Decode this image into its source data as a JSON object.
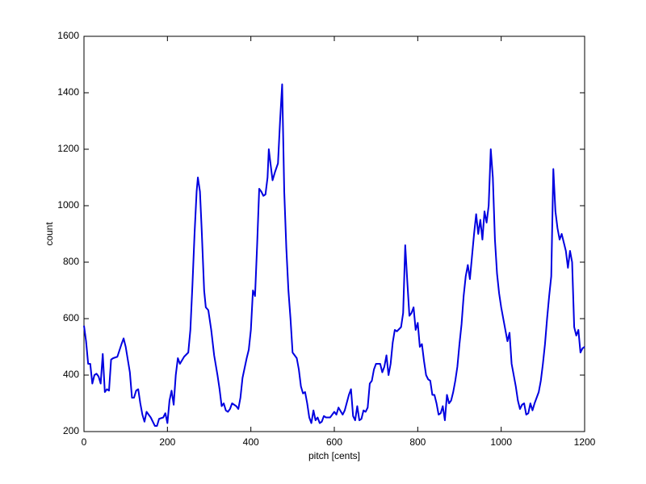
{
  "chart_data": {
    "type": "line",
    "xlabel": "pitch [cents]",
    "ylabel": "count",
    "color": "#0000e0",
    "x": [
      0,
      5,
      10,
      15,
      20,
      25,
      30,
      35,
      40,
      45,
      50,
      55,
      60,
      65,
      70,
      80,
      90,
      95,
      100,
      110,
      115,
      120,
      125,
      130,
      135,
      140,
      145,
      150,
      160,
      170,
      175,
      180,
      190,
      195,
      200,
      205,
      210,
      215,
      220,
      225,
      230,
      240,
      250,
      255,
      260,
      265,
      270,
      273,
      278,
      282,
      288,
      292,
      298,
      305,
      312,
      320,
      325,
      330,
      335,
      340,
      345,
      350,
      355,
      365,
      370,
      375,
      380,
      390,
      395,
      400,
      405,
      410,
      415,
      420,
      425,
      430,
      435,
      440,
      443,
      447,
      452,
      458,
      465,
      470,
      475,
      480,
      485,
      490,
      495,
      500,
      505,
      510,
      515,
      520,
      525,
      530,
      535,
      540,
      545,
      550,
      555,
      560,
      565,
      570,
      575,
      580,
      590,
      600,
      605,
      610,
      620,
      625,
      635,
      640,
      645,
      650,
      655,
      660,
      665,
      670,
      675,
      680,
      685,
      690,
      695,
      700,
      710,
      715,
      720,
      725,
      730,
      735,
      740,
      745,
      750,
      760,
      765,
      770,
      775,
      780,
      785,
      790,
      795,
      800,
      805,
      810,
      815,
      820,
      825,
      830,
      835,
      840,
      845,
      850,
      855,
      860,
      865,
      870,
      875,
      880,
      885,
      890,
      895,
      900,
      905,
      910,
      915,
      920,
      925,
      930,
      935,
      940,
      945,
      950,
      955,
      960,
      965,
      970,
      975,
      980,
      985,
      990,
      995,
      1000,
      1005,
      1010,
      1015,
      1020,
      1025,
      1030,
      1035,
      1040,
      1045,
      1050,
      1055,
      1060,
      1065,
      1070,
      1075,
      1080,
      1085,
      1090,
      1095,
      1100,
      1105,
      1110,
      1115,
      1120,
      1125,
      1130,
      1135,
      1140,
      1145,
      1150,
      1155,
      1160,
      1165,
      1170,
      1175,
      1180,
      1185,
      1190,
      1195,
      1200
    ],
    "values": [
      575,
      520,
      440,
      440,
      370,
      400,
      405,
      395,
      370,
      475,
      340,
      350,
      345,
      455,
      460,
      465,
      510,
      530,
      500,
      410,
      320,
      320,
      345,
      350,
      300,
      260,
      235,
      270,
      250,
      220,
      220,
      245,
      250,
      265,
      230,
      310,
      345,
      295,
      400,
      460,
      440,
      465,
      480,
      560,
      720,
      900,
      1050,
      1100,
      1050,
      920,
      700,
      640,
      630,
      560,
      470,
      400,
      350,
      290,
      300,
      275,
      270,
      280,
      300,
      290,
      280,
      320,
      390,
      460,
      490,
      560,
      700,
      680,
      860,
      1060,
      1050,
      1035,
      1040,
      1100,
      1200,
      1150,
      1090,
      1120,
      1150,
      1300,
      1430,
      1050,
      850,
      700,
      600,
      480,
      470,
      460,
      420,
      360,
      335,
      340,
      300,
      250,
      230,
      275,
      240,
      250,
      230,
      235,
      255,
      250,
      250,
      270,
      260,
      285,
      260,
      275,
      330,
      350,
      255,
      240,
      290,
      240,
      245,
      275,
      270,
      285,
      370,
      380,
      420,
      440,
      440,
      410,
      430,
      470,
      400,
      440,
      515,
      560,
      555,
      570,
      620,
      860,
      730,
      610,
      620,
      640,
      560,
      585,
      500,
      510,
      450,
      400,
      385,
      380,
      330,
      330,
      300,
      260,
      265,
      290,
      240,
      330,
      300,
      310,
      340,
      380,
      430,
      510,
      580,
      680,
      750,
      790,
      740,
      820,
      900,
      970,
      900,
      950,
      880,
      980,
      940,
      1000,
      1200,
      1100,
      880,
      760,
      690,
      640,
      600,
      560,
      520,
      550,
      440,
      400,
      360,
      310,
      280,
      295,
      300,
      260,
      265,
      300,
      275,
      300,
      320,
      340,
      380,
      440,
      510,
      600,
      680,
      750,
      1130,
      980,
      920,
      880,
      900,
      870,
      840,
      780,
      840,
      800,
      570,
      540,
      560,
      480,
      495,
      500
    ],
    "xlim": [
      0,
      1200
    ],
    "xticks": [
      0,
      200,
      400,
      600,
      800,
      1000,
      1200
    ],
    "ylim": [
      200,
      1600
    ],
    "yticks": [
      200,
      400,
      600,
      800,
      1000,
      1200,
      1400,
      1600
    ]
  }
}
